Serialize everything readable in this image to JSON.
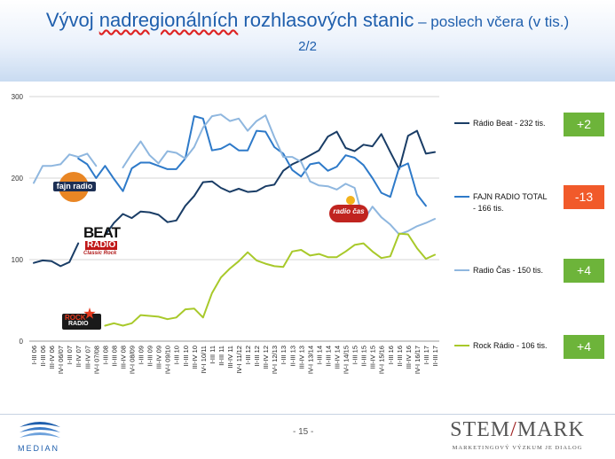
{
  "header": {
    "title_pre": "Vývoj ",
    "title_underlined": "nadregionálních",
    "title_post": " rozhlasových stanic",
    "subtitle": " – poslech včera (v tis.)",
    "page_indicator": "2/2"
  },
  "chart_data": {
    "type": "line",
    "title": "Vývoj nadregionálních rozhlasových stanic – poslech včera (v tis.)",
    "xlabel": "",
    "ylabel": "",
    "ylim": [
      0,
      300
    ],
    "yticks": [
      0,
      100,
      200,
      300
    ],
    "grid": true,
    "legend_position": "right",
    "categories": [
      "I-III 06",
      "II-III 06",
      "III-IV 06",
      "IV-I 06/07",
      "I-III 07",
      "II-IV 07",
      "III-IV 07",
      "IV-I 07/08",
      "I-III 08",
      "II-III 08",
      "III-IV 08",
      "IV-I 08/09",
      "I-III 09",
      "II-III 09",
      "III-IV 09",
      "IV-I 09/10",
      "I-III 10",
      "II-III 10",
      "III-IV 10",
      "IV-I 10/11",
      "I-III 11",
      "II-III 11",
      "III-IV 11",
      "IV-I 11/12",
      "I-III 12",
      "II-III 12",
      "III-IV 12",
      "IV-I 12/13",
      "I-III 13",
      "II-III 13",
      "III-IV 13",
      "IV-I 13/14",
      "I-III 14",
      "II-III 14",
      "III-IV 14",
      "IV-I 14/15",
      "I-III 15",
      "II-III 15",
      "III-IV 15",
      "IV-I 15/16",
      "I-III 16",
      "II-III 16",
      "III-IV 16",
      "IV-I 16/17",
      "I-III 17",
      "II-III 17"
    ],
    "series": [
      {
        "name": "Rádio Beat - 232 tis.",
        "color": "#1a3d66",
        "values": [
          96,
          99,
          98,
          92,
          97,
          120,
          null,
          null,
          130,
          145,
          156,
          151,
          159,
          158,
          155,
          146,
          148,
          166,
          178,
          195,
          196,
          188,
          183,
          187,
          183,
          184,
          190,
          192,
          209,
          217,
          222,
          228,
          234,
          251,
          257,
          237,
          233,
          241,
          239,
          254,
          232,
          211,
          252,
          258,
          230,
          232
        ]
      },
      {
        "name": "FAJN RADIO TOTAL - 166 tis.",
        "color": "#2e7ac9",
        "values": [
          null,
          null,
          null,
          null,
          null,
          224,
          217,
          200,
          215,
          199,
          184,
          212,
          219,
          219,
          215,
          211,
          211,
          224,
          276,
          273,
          234,
          236,
          242,
          234,
          234,
          258,
          257,
          238,
          230,
          210,
          202,
          217,
          219,
          209,
          214,
          228,
          225,
          216,
          200,
          182,
          177,
          213,
          218,
          180,
          166,
          null
        ]
      },
      {
        "name": "Radio Čas - 150 tis.",
        "color": "#8fb7df",
        "values": [
          194,
          215,
          215,
          217,
          229,
          226,
          230,
          215,
          null,
          null,
          213,
          230,
          245,
          228,
          218,
          233,
          231,
          224,
          238,
          262,
          276,
          278,
          270,
          273,
          258,
          270,
          277,
          250,
          226,
          226,
          220,
          196,
          191,
          190,
          186,
          193,
          188,
          148,
          165,
          152,
          143,
          131,
          135,
          141,
          145,
          150
        ]
      },
      {
        "name": "Rock Rádio - 106 tis.",
        "color": "#a8c92a",
        "values": [
          null,
          null,
          null,
          null,
          null,
          null,
          null,
          null,
          19,
          22,
          19,
          22,
          32,
          31,
          30,
          27,
          29,
          39,
          40,
          29,
          59,
          78,
          89,
          98,
          109,
          99,
          95,
          92,
          91,
          110,
          112,
          105,
          107,
          103,
          103,
          110,
          118,
          120,
          110,
          102,
          104,
          132,
          131,
          114,
          101,
          106
        ]
      }
    ]
  },
  "legend": [
    {
      "label": "Rádio Beat - 232 tis.",
      "change": "+2",
      "badge_color": "#6db43a"
    },
    {
      "label": "FAJN RADIO TOTAL - 166 tis.",
      "change": "-13",
      "badge_color": "#f15a2a"
    },
    {
      "label": "Radio Čas - 150 tis.",
      "change": "+4",
      "badge_color": "#6db43a"
    },
    {
      "label": "Rock Rádio - 106 tis.",
      "change": "+4",
      "badge_color": "#6db43a"
    }
  ],
  "brands": {
    "fajn": "fajn radio",
    "beat_1": "BEAT",
    "beat_2": "RADIO",
    "beat_3": "Classic Rock",
    "cas": "radio čas",
    "rock_1": "ROCK",
    "rock_2": "RADIO"
  },
  "footer": {
    "page_number": "- 15 -",
    "median_logo": "MEDIAN",
    "stem_logo_left": "STEM",
    "stem_logo_slash": "/",
    "stem_logo_right": "MARK",
    "stem_tagline": "MARKETINGOVÝ VÝZKUM JE DIALOG"
  }
}
